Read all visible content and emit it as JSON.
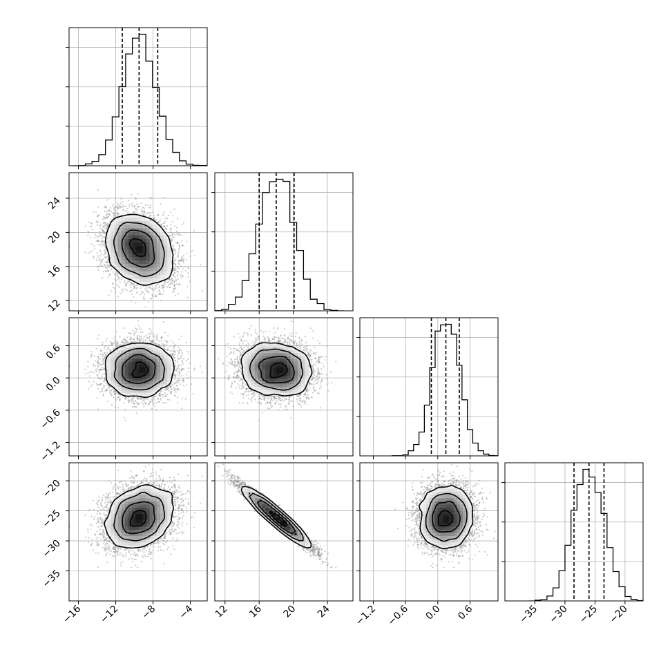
{
  "chart_data": {
    "type": "corner",
    "title": "",
    "parameters": [
      {
        "index": 0,
        "range": [
          -17,
          -2.2
        ],
        "ticks": [
          -16,
          -12,
          -8,
          -4
        ],
        "tick_labels": [
          "−16",
          "−12",
          "−8",
          "−4"
        ],
        "mean": -9.5,
        "sd": 1.8,
        "quantiles": [
          -11.3,
          -9.5,
          -7.5
        ]
      },
      {
        "index": 1,
        "range": [
          10.8,
          27
        ],
        "ticks": [
          12,
          16,
          20,
          24
        ],
        "tick_labels": [
          "12",
          "16",
          "20",
          "24"
        ],
        "mean": 18.0,
        "sd": 2.0,
        "quantiles": [
          16.0,
          18.0,
          20.1
        ]
      },
      {
        "index": 2,
        "range": [
          -1.45,
          1.12
        ],
        "ticks": [
          -1.2,
          -0.6,
          0.0,
          0.6
        ],
        "tick_labels": [
          "−1.2",
          "−0.6",
          "0.0",
          "0.6"
        ],
        "mean": 0.15,
        "sd": 0.25,
        "quantiles": [
          -0.12,
          0.15,
          0.4
        ]
      },
      {
        "index": 3,
        "range": [
          -40,
          -17
        ],
        "ticks": [
          -35,
          -30,
          -25,
          -20
        ],
        "tick_labels": [
          "−35",
          "−30",
          "−25",
          "−20"
        ],
        "mean": -26.0,
        "sd": 2.5,
        "quantiles": [
          -28.5,
          -26.0,
          -23.5
        ]
      }
    ],
    "correlations": [
      [
        0,
        1,
        -0.25
      ],
      [
        0,
        2,
        0.0
      ],
      [
        0,
        3,
        0.25
      ],
      [
        1,
        2,
        -0.1
      ],
      [
        1,
        3,
        -0.97
      ],
      [
        2,
        3,
        0.05
      ]
    ],
    "grid": true,
    "legend": "none"
  }
}
